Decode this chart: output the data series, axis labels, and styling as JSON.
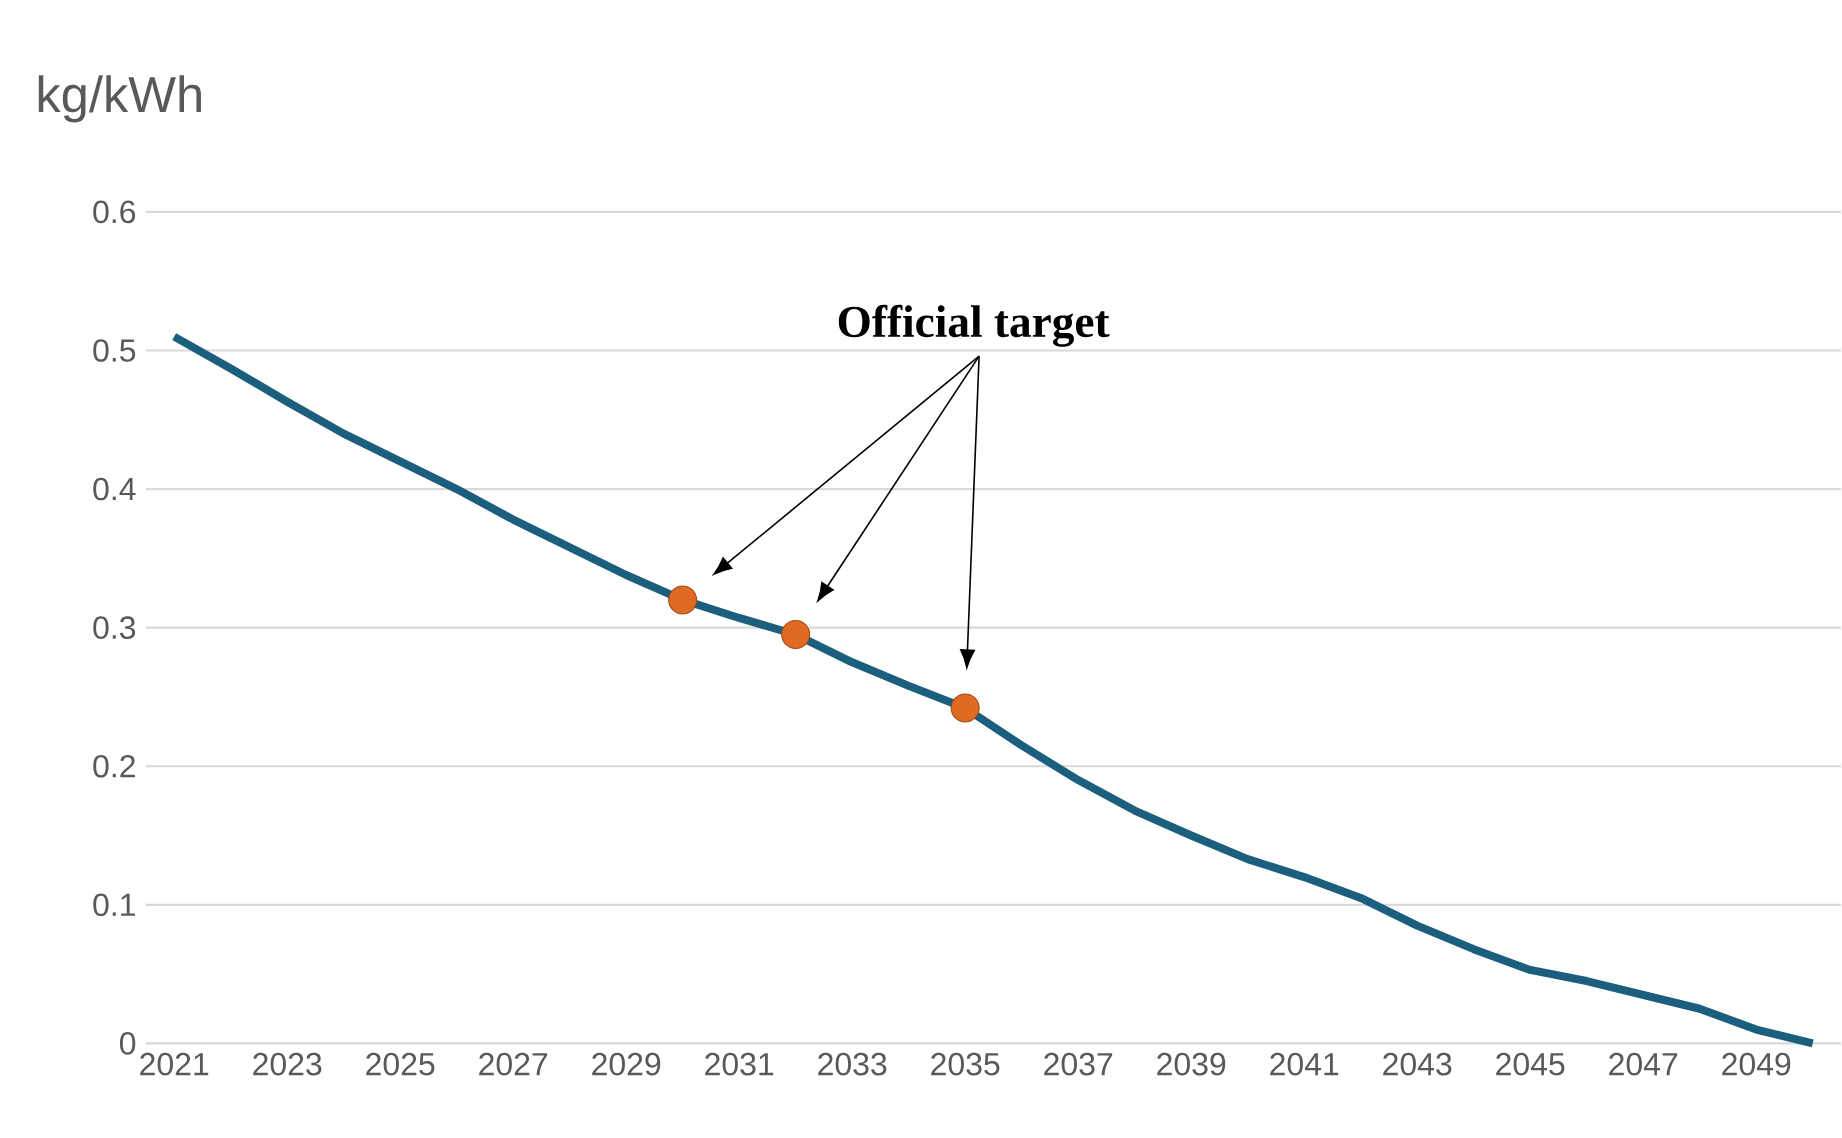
{
  "chart_data": {
    "type": "line",
    "ylabel": "kg/kWh",
    "annotations": [
      "Official target"
    ],
    "xlim": [
      2020.5,
      2050.5
    ],
    "ylim": [
      0,
      0.6
    ],
    "xticks": [
      2021,
      2023,
      2025,
      2027,
      2029,
      2031,
      2033,
      2035,
      2037,
      2039,
      2041,
      2043,
      2045,
      2047,
      2049
    ],
    "yticks": [
      0,
      0.1,
      0.2,
      0.3,
      0.4,
      0.5,
      0.6
    ],
    "grid": "y",
    "series": [
      {
        "color": "#1b5e7d",
        "marker": "none",
        "x": [
          2021,
          2022,
          2023,
          2024,
          2025,
          2026,
          2027,
          2028,
          2029,
          2030,
          2031,
          2032,
          2033,
          2034,
          2035,
          2036,
          2037,
          2038,
          2039,
          2040,
          2041,
          2042,
          2043,
          2044,
          2045,
          2046,
          2047,
          2048,
          2049,
          2050
        ],
        "values": [
          0.51,
          0.487,
          0.463,
          0.44,
          0.42,
          0.4,
          0.378,
          0.358,
          0.338,
          0.32,
          0.307,
          0.295,
          0.275,
          0.258,
          0.242,
          0.215,
          0.19,
          0.168,
          0.15,
          0.133,
          0.12,
          0.105,
          0.085,
          0.068,
          0.053,
          0.045,
          0.035,
          0.025,
          0.01,
          0.0
        ]
      },
      {
        "type": "scatter",
        "color": "#e06a22",
        "marker": "circle",
        "x": [
          2030,
          2032,
          2035
        ],
        "values": [
          0.32,
          0.295,
          0.242
        ]
      }
    ]
  }
}
